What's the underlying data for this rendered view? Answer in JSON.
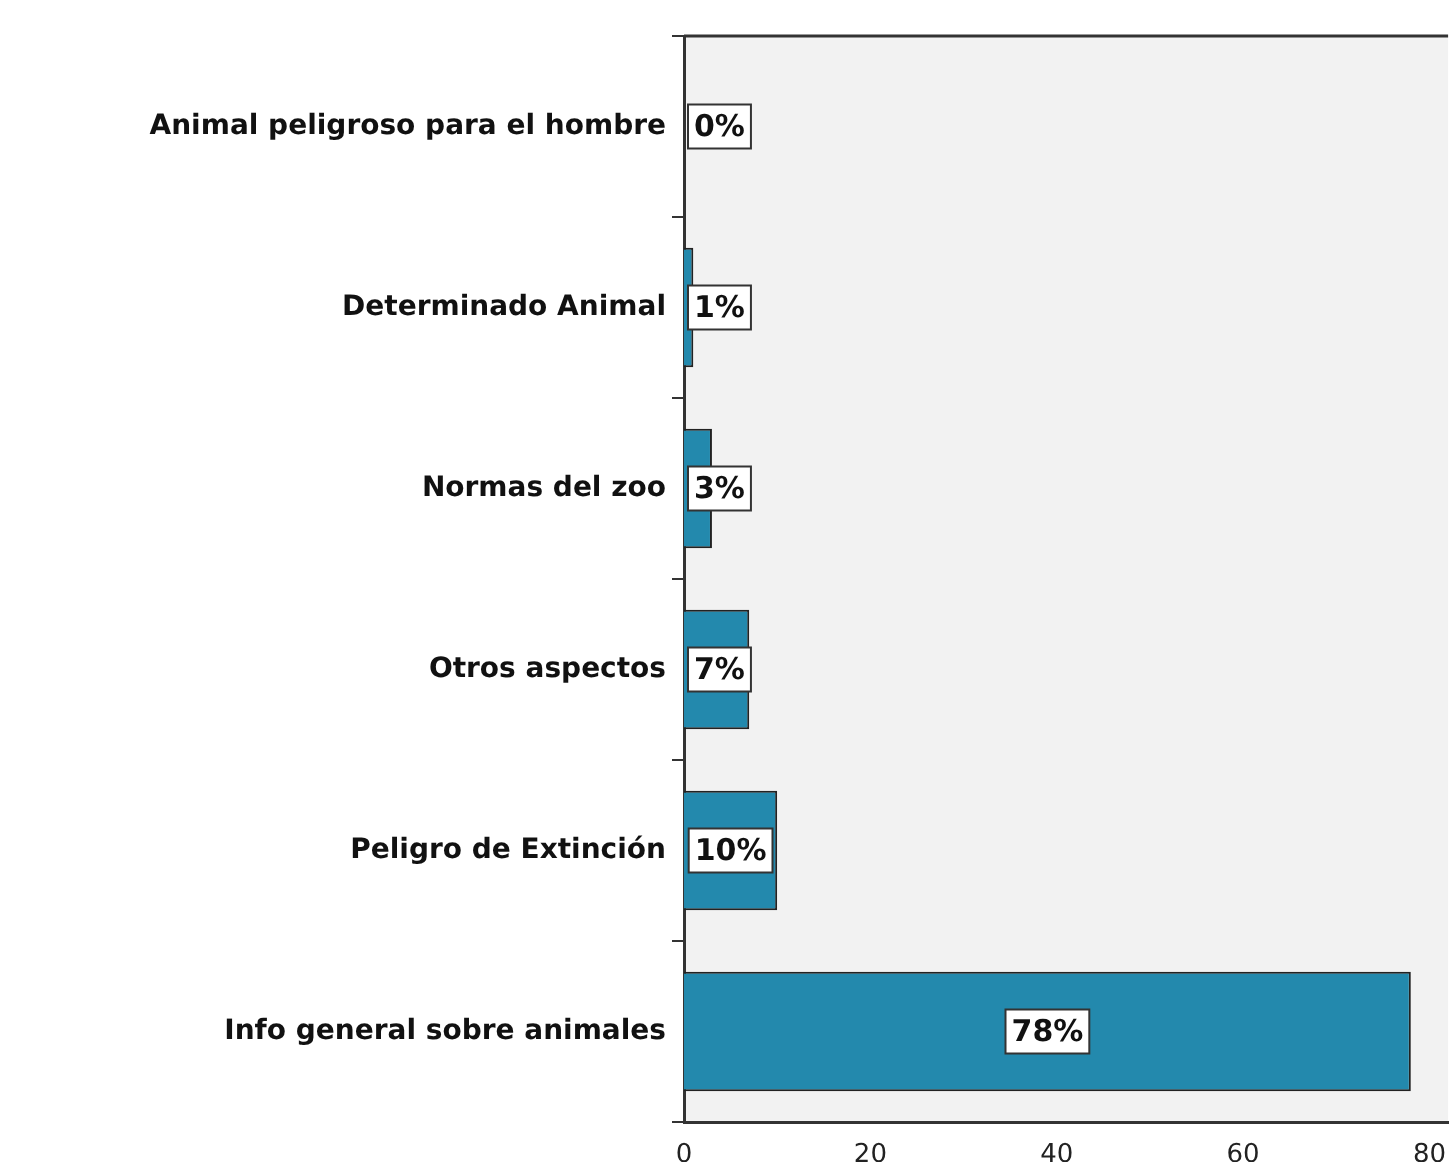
{
  "chart_data": {
    "type": "bar",
    "orientation": "horizontal",
    "categories": [
      "Animal peligroso para el hombre",
      "Determinado Animal",
      "Normas del zoo",
      "Otros aspectos",
      "Peligro de Extinción",
      "Info general sobre animales"
    ],
    "values": [
      0,
      1,
      3,
      7,
      10,
      78
    ],
    "value_labels": [
      "0%",
      "1%",
      "3%",
      "7%",
      "10%",
      "78%"
    ],
    "color": "#2389ad",
    "xlim": [
      0,
      82
    ],
    "xticks": [
      0,
      20,
      40,
      60,
      80
    ],
    "grid": false,
    "legend": false
  }
}
